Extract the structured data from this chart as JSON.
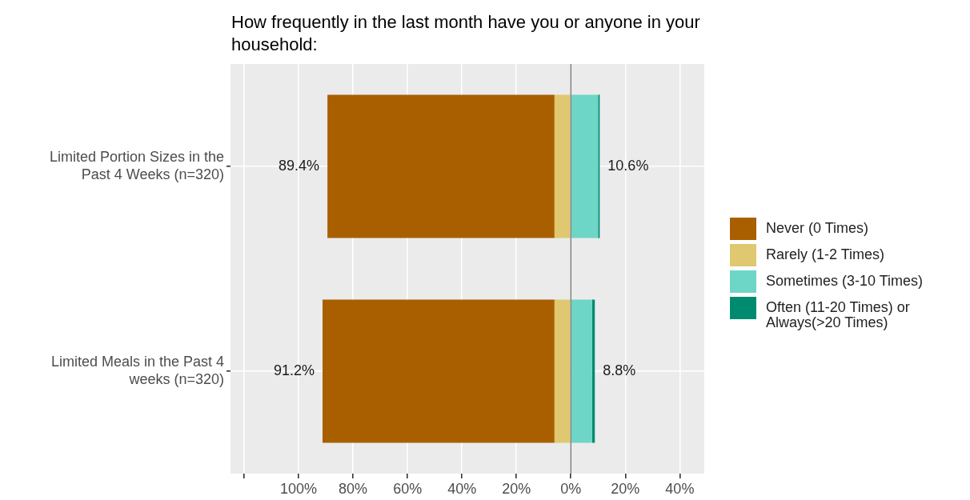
{
  "chart_data": {
    "type": "bar",
    "orientation": "horizontal",
    "stacked": true,
    "title": "How frequently in the last month have you or anyone in your household:",
    "categories": [
      "Limited Portion Sizes in the Past 4 Weeks (n=320)",
      "Limited Meals in the Past 4 weeks (n=320)"
    ],
    "series": [
      {
        "name": "Never (0 Times)",
        "color": "#a95f00",
        "values": [
          -83.4,
          -85.2
        ]
      },
      {
        "name": "Rarely (1-2 Times)",
        "color": "#dfc86f",
        "values": [
          -6.0,
          -6.0
        ]
      },
      {
        "name": "Sometimes (3-10 Times)",
        "color": "#6dd6c6",
        "values": [
          10.0,
          7.8
        ]
      },
      {
        "name": "Often (11-20 Times) or Always(>20 Times)",
        "color": "#008b70",
        "values": [
          0.6,
          1.0
        ]
      }
    ],
    "xlim": [
      -125,
      49
    ],
    "xticks": [
      {
        "value": -120,
        "label": null
      },
      {
        "value": -100,
        "label": "100%"
      },
      {
        "value": -80,
        "label": "80%"
      },
      {
        "value": -60,
        "label": "60%"
      },
      {
        "value": -40,
        "label": "40%"
      },
      {
        "value": -20,
        "label": "20%"
      },
      {
        "value": 0,
        "label": "0%"
      },
      {
        "value": 20,
        "label": "20%"
      },
      {
        "value": 40,
        "label": "40%"
      }
    ],
    "ref_lines": [
      {
        "axis": "x",
        "value": 0,
        "color": "#808080"
      }
    ],
    "annotations": [
      {
        "text": "89.4%",
        "x": -89.4,
        "y": "Limited Portion Sizes in the Past 4 Weeks (n=320)"
      },
      {
        "text": "10.6%",
        "x": 10.6,
        "y": "Limited Portion Sizes in the Past 4 Weeks (n=320)"
      },
      {
        "text": "91.2%",
        "x": -91.2,
        "y": "Limited Meals in the Past 4 weeks (n=320)"
      },
      {
        "text": "8.8%",
        "x": 8.8,
        "y": "Limited Meals in the Past 4 weeks (n=320)"
      }
    ],
    "grid": true,
    "legend": "right"
  }
}
